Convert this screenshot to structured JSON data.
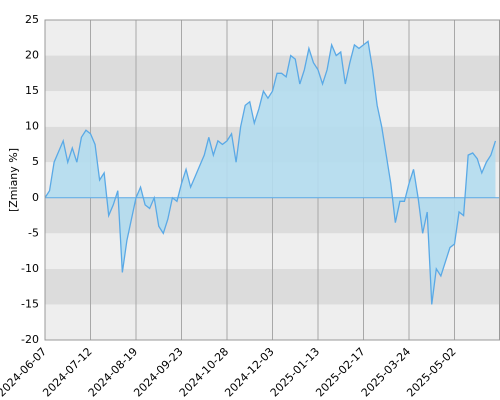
{
  "chart_data": {
    "type": "area",
    "y_label": "[Zmiany %]",
    "categories": [
      "2024-06-07",
      null,
      null,
      null,
      null,
      null,
      null,
      null,
      null,
      null,
      "2024-07-12",
      null,
      null,
      null,
      null,
      null,
      null,
      null,
      null,
      null,
      "2024-08-19",
      null,
      null,
      null,
      null,
      null,
      null,
      null,
      null,
      null,
      "2024-09-23",
      null,
      null,
      null,
      null,
      null,
      null,
      null,
      null,
      null,
      "2024-10-28",
      null,
      null,
      null,
      null,
      null,
      null,
      null,
      null,
      null,
      "2024-12-03",
      null,
      null,
      null,
      null,
      null,
      null,
      null,
      null,
      null,
      "2025-01-13",
      null,
      null,
      null,
      null,
      null,
      null,
      null,
      null,
      null,
      "2025-02-17",
      null,
      null,
      null,
      null,
      null,
      null,
      null,
      null,
      null,
      "2025-03-24",
      null,
      null,
      null,
      null,
      null,
      null,
      null,
      null,
      null,
      "2025-05-02",
      null,
      null,
      null,
      null,
      null,
      null,
      null,
      null,
      null
    ],
    "values": [
      0,
      1,
      5,
      6.5,
      8,
      5,
      7,
      5,
      8.5,
      9.5,
      9,
      7.5,
      2.5,
      3.5,
      -2.5,
      -1,
      1,
      -10.5,
      -6,
      -3,
      0,
      1.5,
      -1,
      -1.5,
      0,
      -4,
      -5,
      -3,
      0,
      -0.5,
      2,
      4,
      1.5,
      3,
      4.5,
      6,
      8.5,
      6,
      8,
      7.5,
      8,
      9,
      5,
      10,
      13,
      13.5,
      10.5,
      12.5,
      15,
      14,
      15,
      17.5,
      17.5,
      17,
      20,
      19.5,
      16,
      18,
      21,
      19,
      18,
      16,
      18,
      21.5,
      20,
      20.5,
      16,
      19,
      21.5,
      21,
      21.5,
      22,
      18,
      13,
      10,
      6,
      2,
      -3.5,
      -0.5,
      -0.5,
      2,
      4,
      0,
      -5,
      -2,
      -15,
      -10,
      -11,
      -9,
      -7,
      -6.5,
      -2,
      -2.5,
      6,
      6.3,
      5.5,
      3.5,
      5,
      6,
      8
    ],
    "color": "#5aa9e6",
    "fill_color": "#b3dcee",
    "ylim": [
      -20,
      25
    ],
    "yticks": [
      -20,
      -15,
      -10,
      -5,
      0,
      5,
      10,
      15,
      20,
      25
    ],
    "grid": true
  }
}
